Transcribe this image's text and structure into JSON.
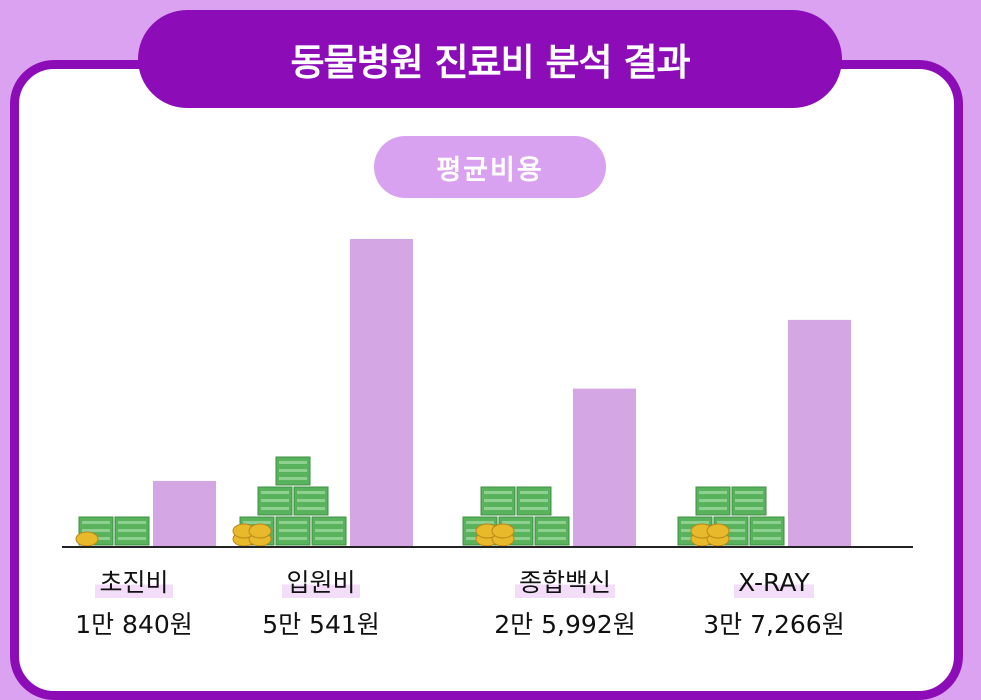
{
  "header": {
    "title": "동물병원 진료비 분석 결과",
    "subtitle": "평균비용"
  },
  "colors": {
    "accent": "#8c0db8",
    "bar": "#d4a6e4",
    "money": "#58b35c",
    "coin": "#e8b92a"
  },
  "chart_data": {
    "type": "bar",
    "title": "동물병원 진료비 분석 결과",
    "subtitle": "평균비용",
    "categories": [
      "초진비",
      "입원비",
      "종합백신",
      "X-RAY"
    ],
    "values": [
      10840,
      50541,
      25992,
      37266
    ],
    "value_labels": [
      "1만 840원",
      "5만 541원",
      "2만 5,992원",
      "3만 7,266원"
    ],
    "money_stacks": [
      1,
      3,
      2,
      2
    ],
    "ylim": [
      0,
      50541
    ],
    "grid": false
  }
}
